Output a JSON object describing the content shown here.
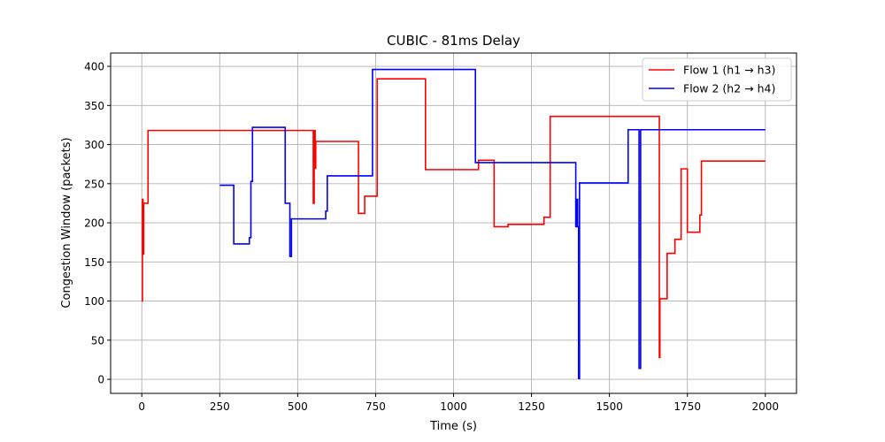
{
  "chart_data": {
    "type": "line",
    "title": "CUBIC - 81ms Delay",
    "xlabel": "Time (s)",
    "ylabel": "Congestion Window (packets)",
    "xlim": [
      -100,
      2100
    ],
    "ylim": [
      -18,
      417
    ],
    "xticks": [
      0,
      250,
      500,
      750,
      1000,
      1250,
      1500,
      1750,
      2000
    ],
    "yticks": [
      0,
      50,
      100,
      150,
      200,
      250,
      300,
      350,
      400
    ],
    "grid": true,
    "legend_position": "top-right",
    "series": [
      {
        "name": "Flow 1 (h1 → h3)",
        "color": "#ff0000",
        "step": true,
        "points": [
          [
            0,
            100
          ],
          [
            2,
            230
          ],
          [
            4,
            160
          ],
          [
            6,
            225
          ],
          [
            20,
            318
          ],
          [
            550,
            225
          ],
          [
            553,
            318
          ],
          [
            556,
            270
          ],
          [
            558,
            304
          ],
          [
            695,
            212
          ],
          [
            715,
            234
          ],
          [
            755,
            384
          ],
          [
            910,
            268
          ],
          [
            1080,
            280
          ],
          [
            1130,
            195
          ],
          [
            1175,
            198
          ],
          [
            1290,
            207
          ],
          [
            1310,
            336
          ],
          [
            1660,
            28
          ],
          [
            1662,
            103
          ],
          [
            1685,
            161
          ],
          [
            1710,
            179
          ],
          [
            1730,
            269
          ],
          [
            1750,
            188
          ],
          [
            1790,
            210
          ],
          [
            1795,
            279
          ],
          [
            2000,
            279
          ]
        ]
      },
      {
        "name": "Flow 2 (h2 → h4)",
        "color": "#0000ff",
        "step": true,
        "points": [
          [
            250,
            248
          ],
          [
            295,
            173
          ],
          [
            345,
            181
          ],
          [
            350,
            253
          ],
          [
            355,
            322
          ],
          [
            460,
            225
          ],
          [
            465,
            225
          ],
          [
            475,
            157
          ],
          [
            480,
            205
          ],
          [
            590,
            215
          ],
          [
            595,
            260
          ],
          [
            740,
            396
          ],
          [
            1070,
            277
          ],
          [
            1392,
            195
          ],
          [
            1395,
            230
          ],
          [
            1398,
            195
          ],
          [
            1401,
            1
          ],
          [
            1404,
            251
          ],
          [
            1560,
            319
          ],
          [
            1595,
            14
          ],
          [
            1600,
            319
          ],
          [
            2000,
            319
          ]
        ]
      }
    ]
  }
}
